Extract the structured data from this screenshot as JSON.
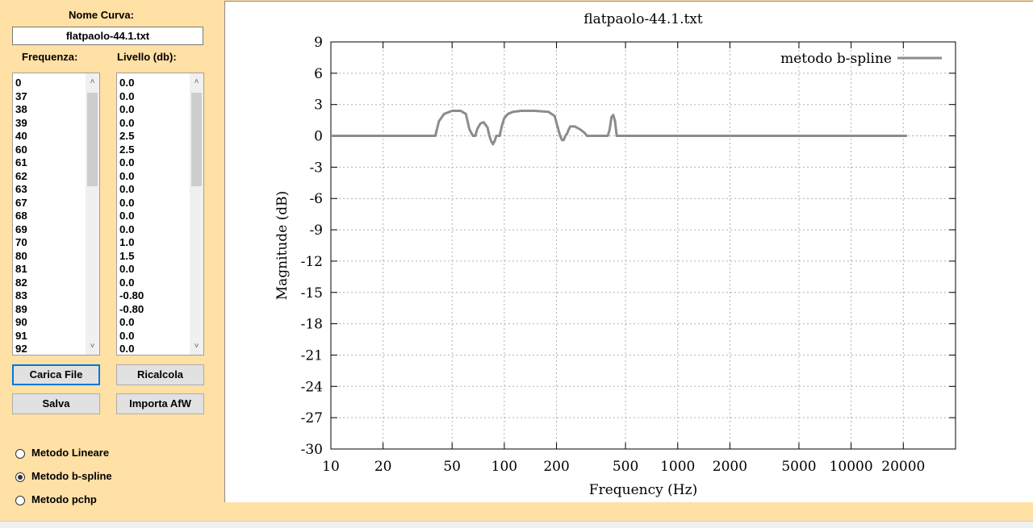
{
  "curve": {
    "name_label": "Nome Curva:",
    "name_value": "flatpaolo-44.1.txt"
  },
  "lists": {
    "freq_label": "Frequenza:",
    "level_label": "Livello (db):",
    "frequencies": [
      "0",
      "37",
      "38",
      "39",
      "40",
      "60",
      "61",
      "62",
      "63",
      "67",
      "68",
      "69",
      "70",
      "80",
      "81",
      "82",
      "83",
      "89",
      "90",
      "91",
      "92"
    ],
    "levels": [
      "0.0",
      "0.0",
      "0.0",
      "0.0",
      "2.5",
      "2.5",
      "0.0",
      "0.0",
      "0.0",
      "0.0",
      "0.0",
      "0.0",
      "1.0",
      "1.5",
      "0.0",
      "0.0",
      "-0.80",
      "-0.80",
      "0.0",
      "0.0",
      "0.0"
    ]
  },
  "buttons": {
    "load": "Carica File",
    "recalc": "Ricalcola",
    "save": "Salva",
    "import_afw": "Importa AfW"
  },
  "methods": {
    "linear": "Metodo Lineare",
    "bspline": "Metodo b-spline",
    "pchp": "Metodo pchp",
    "selected": "bspline"
  },
  "chart_data": {
    "type": "line",
    "title": "flatpaolo-44.1.txt",
    "xlabel": "Frequency (Hz)",
    "ylabel": "Magnitude (dB)",
    "xscale": "log",
    "xlim": [
      10,
      40000
    ],
    "ylim": [
      -30,
      9
    ],
    "xticks": [
      10,
      20,
      50,
      100,
      200,
      500,
      1000,
      2000,
      5000,
      10000,
      20000
    ],
    "yticks": [
      9,
      6,
      3,
      0,
      -3,
      -6,
      -9,
      -12,
      -15,
      -18,
      -21,
      -24,
      -27,
      -30
    ],
    "grid": true,
    "legend_position": "top-right",
    "line_color": "#8c8c8c",
    "series": [
      {
        "name": "metodo b-spline",
        "x": [
          10,
          40,
          42,
          45,
          50,
          56,
          60,
          63,
          66,
          68,
          70,
          73,
          76,
          80,
          82,
          84,
          86,
          88,
          90,
          94,
          97,
          100,
          105,
          112,
          125,
          150,
          180,
          195,
          205,
          210,
          215,
          220,
          225,
          230,
          235,
          240,
          255,
          275,
          290,
          300,
          310,
          380,
          395,
          405,
          415,
          425,
          435,
          445,
          460,
          500,
          21000
        ],
        "y": [
          0,
          0,
          1.4,
          2.1,
          2.4,
          2.4,
          2.1,
          0.6,
          0,
          0,
          0.7,
          1.2,
          1.3,
          0.8,
          0,
          -0.5,
          -0.8,
          -0.5,
          0,
          0,
          1.0,
          1.7,
          2.1,
          2.3,
          2.4,
          2.4,
          2.3,
          1.9,
          0.6,
          0,
          -0.4,
          -0.4,
          0,
          0.2,
          0.6,
          0.9,
          0.9,
          0.6,
          0.3,
          0,
          0,
          0,
          0,
          0.6,
          1.8,
          2.0,
          1.4,
          0,
          0,
          0,
          0
        ]
      }
    ]
  }
}
